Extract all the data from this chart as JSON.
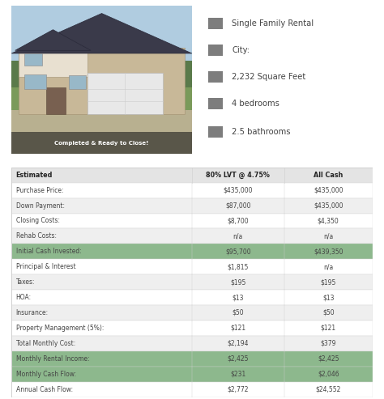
{
  "caption": "Completed & Ready to Close!",
  "info_items": [
    "Single Family Rental",
    "City:",
    "2,232 Square Feet",
    "4 bedrooms",
    "2.5 bathrooms"
  ],
  "table_headers": [
    "Estimated",
    "80% LVT @ 4.75%",
    "All Cash"
  ],
  "table_rows": [
    {
      "label": "Purchase Price:",
      "col1": "$435,000",
      "col2": "$435,000",
      "highlight": false,
      "alt": false
    },
    {
      "label": "Down Payment:",
      "col1": "$87,000",
      "col2": "$435,000",
      "highlight": false,
      "alt": true
    },
    {
      "label": "Closing Costs:",
      "col1": "$8,700",
      "col2": "$4,350",
      "highlight": false,
      "alt": false
    },
    {
      "label": "Rehab Costs:",
      "col1": "n/a",
      "col2": "n/a",
      "highlight": false,
      "alt": true
    },
    {
      "label": "Initial Cash Invested:",
      "col1": "$95,700",
      "col2": "$439,350",
      "highlight": true,
      "alt": false
    },
    {
      "label": "Principal & Interest",
      "col1": "$1,815",
      "col2": "n/a",
      "highlight": false,
      "alt": false
    },
    {
      "label": "Taxes:",
      "col1": "$195",
      "col2": "$195",
      "highlight": false,
      "alt": true
    },
    {
      "label": "HOA:",
      "col1": "$13",
      "col2": "$13",
      "highlight": false,
      "alt": false
    },
    {
      "label": "Insurance:",
      "col1": "$50",
      "col2": "$50",
      "highlight": false,
      "alt": true
    },
    {
      "label": "Property Management (5%):",
      "col1": "$121",
      "col2": "$121",
      "highlight": false,
      "alt": false
    },
    {
      "label": "Total Monthly Cost:",
      "col1": "$2,194",
      "col2": "$379",
      "highlight": false,
      "alt": true
    },
    {
      "label": "Monthly Rental Income:",
      "col1": "$2,425",
      "col2": "$2,425",
      "highlight": true,
      "alt": false
    },
    {
      "label": "Monthly Cash Flow:",
      "col1": "$231",
      "col2": "$2,046",
      "highlight": true,
      "alt": false
    },
    {
      "label": "Annual Cash Flow:",
      "col1": "$2,772",
      "col2": "$24,552",
      "highlight": false,
      "alt": false
    }
  ],
  "highlight_color": "#8db88d",
  "header_bg": "#e4e4e4",
  "alt_row_bg": "#efefef",
  "white_bg": "#ffffff",
  "border_color": "#d0d0d0",
  "text_color": "#444444",
  "header_text_color": "#222222",
  "icon_color": "#666666",
  "background_color": "#ffffff",
  "fig_width": 4.74,
  "fig_height": 4.93,
  "col_splits": [
    0.0,
    0.5,
    0.755,
    1.0
  ]
}
